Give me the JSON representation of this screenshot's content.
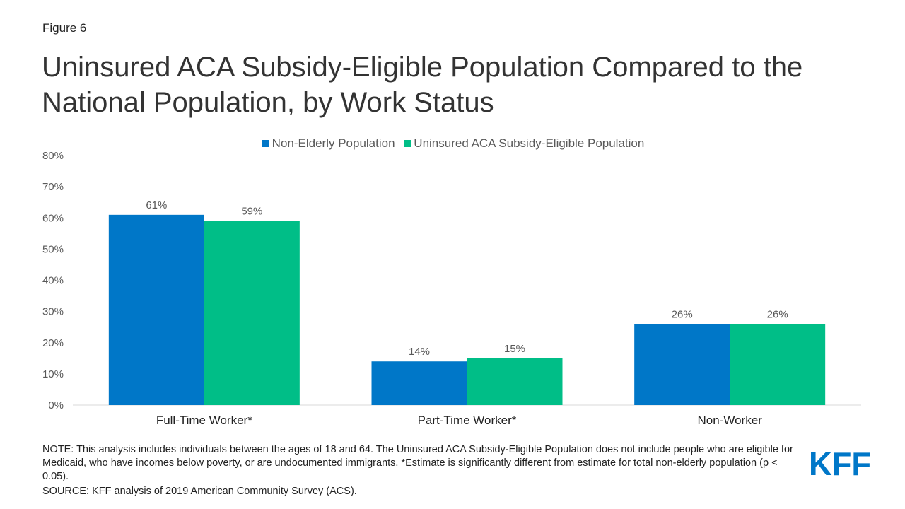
{
  "figure_label": "Figure 6",
  "title": "Uninsured ACA Subsidy-Eligible Population Compared to the National Population, by Work Status",
  "note": "NOTE: This analysis includes individuals between the ages of 18 and 64. The Uninsured ACA Subsidy-Eligible Population does not include people who are eligible for Medicaid, who have incomes below poverty, or are undocumented immigrants. *Estimate is significantly different from estimate for total non-elderly population (p < 0.05).",
  "source": "SOURCE: KFF analysis of 2019 American Community Survey (ACS).",
  "logo": "KFF",
  "chart_data": {
    "type": "bar",
    "categories": [
      "Full-Time Worker*",
      "Part-Time Worker*",
      "Non-Worker"
    ],
    "series": [
      {
        "name": "Non-Elderly Population",
        "values": [
          61,
          14,
          26
        ],
        "color": "#0077C8"
      },
      {
        "name": "Uninsured ACA Subsidy-Eligible Population",
        "values": [
          59,
          15,
          26
        ],
        "color": "#00BE87"
      }
    ],
    "ylim": [
      0,
      80
    ],
    "yticks": [
      "0%",
      "10%",
      "20%",
      "30%",
      "40%",
      "50%",
      "60%",
      "70%",
      "80%"
    ],
    "value_suffix": "%",
    "grid": false,
    "legend": "top-center"
  }
}
